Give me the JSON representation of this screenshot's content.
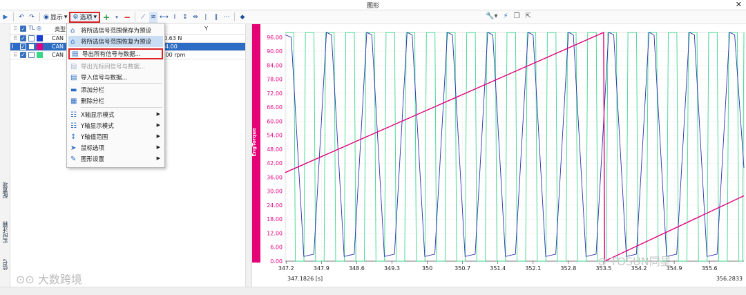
{
  "window": {
    "title": "图形",
    "close": "✕"
  },
  "toolbar": {
    "display_label": "显示",
    "options_label": "选项"
  },
  "signal_table": {
    "columns": [
      "类型",
      "Y"
    ],
    "rows": [
      {
        "type": "CAN",
        "value": "0.63 N",
        "color": "#1b3fd6",
        "selected": false
      },
      {
        "type": "CAN",
        "value": "4.00",
        "color": "#e4007f",
        "selected": true
      },
      {
        "type": "CAN",
        "value": ".00 rpm",
        "color": "#3ad68a",
        "selected": false
      }
    ]
  },
  "menu": {
    "items": [
      {
        "label": "将所选信号范围保存为预设",
        "icon": "home-icon",
        "state": "normal"
      },
      {
        "label": "将所选信号范围恢复为预设",
        "icon": "home-restore-icon",
        "state": "hover"
      },
      {
        "label": "导出所有信号与数据...",
        "icon": "export-icon",
        "state": "boxed"
      },
      {
        "label": "导出光标间信号与数据...",
        "icon": "export-cursor-icon",
        "state": "disabled"
      },
      {
        "label": "导入信号与数据...",
        "icon": "import-icon",
        "state": "normal"
      },
      {
        "label": "添加分栏",
        "icon": "add-panel-icon",
        "state": "normal"
      },
      {
        "label": "删除分栏",
        "icon": "delete-panel-icon",
        "state": "normal"
      },
      {
        "label": "X轴显示模式",
        "icon": "x-axis-icon",
        "state": "submenu"
      },
      {
        "label": "Y轴显示模式",
        "icon": "y-axis-icon",
        "state": "submenu"
      },
      {
        "label": "Y轴值范围",
        "icon": "y-range-icon",
        "state": "submenu"
      },
      {
        "label": "鼠标选项",
        "icon": "cursor-icon",
        "state": "submenu"
      },
      {
        "label": "图形设置",
        "icon": "pencil-icon",
        "state": "submenu"
      }
    ]
  },
  "side_tabs": [
    "配置项",
    "实时注释",
    "信号"
  ],
  "watermarks": {
    "left": "大数跨境",
    "right": "TOSUN同星"
  },
  "chart_data": {
    "type": "line",
    "ylabel": "EngTorque",
    "x_left_label": "347.1826 [s]",
    "x_right_label": "356.2833",
    "xlim": [
      347.1826,
      356.2833
    ],
    "ylim": [
      0,
      98
    ],
    "x_ticks": [
      "347.2",
      "347.9",
      "348.6",
      "349.3",
      "350",
      "350.7",
      "351.4",
      "352.1",
      "352.8",
      "353.5",
      "354.2",
      "354.9",
      "355.6"
    ],
    "y_ticks": [
      "96.00",
      "90.00",
      "84.00",
      "78.00",
      "72.00",
      "66.00",
      "60.00",
      "54.00",
      "48.00",
      "42.00",
      "36.00",
      "30.00",
      "24.00",
      "18.00",
      "12.00",
      "6.00",
      "0.00"
    ],
    "series": [
      {
        "color": "#e4007f",
        "values_desc": "ramp",
        "points": [
          [
            347.1826,
            38
          ],
          [
            353.5,
            98
          ],
          [
            353.52,
            0
          ],
          [
            356.2833,
            28
          ]
        ]
      },
      {
        "color": "#2b2fb3",
        "values_desc": "triangle",
        "points": [
          [
            347.1826,
            97
          ],
          [
            347.3,
            96
          ],
          [
            347.55,
            2
          ],
          [
            347.75,
            3
          ],
          [
            348.0,
            98
          ],
          [
            348.1,
            97
          ],
          [
            348.35,
            2
          ],
          [
            348.55,
            3
          ],
          [
            348.8,
            98
          ],
          [
            348.9,
            97
          ],
          [
            349.15,
            2
          ],
          [
            349.35,
            3
          ],
          [
            349.6,
            98
          ],
          [
            349.7,
            97
          ],
          [
            349.95,
            2
          ],
          [
            350.15,
            3
          ],
          [
            350.4,
            98
          ],
          [
            350.5,
            97
          ],
          [
            350.75,
            2
          ],
          [
            350.95,
            3
          ],
          [
            351.2,
            98
          ],
          [
            351.3,
            97
          ],
          [
            351.55,
            2
          ],
          [
            351.75,
            3
          ],
          [
            352.0,
            98
          ],
          [
            352.1,
            97
          ],
          [
            352.35,
            2
          ],
          [
            352.55,
            3
          ],
          [
            352.8,
            98
          ],
          [
            352.9,
            97
          ],
          [
            353.15,
            2
          ],
          [
            353.35,
            3
          ],
          [
            353.6,
            98
          ],
          [
            353.7,
            97
          ],
          [
            353.95,
            2
          ],
          [
            354.15,
            3
          ],
          [
            354.4,
            98
          ],
          [
            354.5,
            97
          ],
          [
            354.75,
            2
          ],
          [
            354.95,
            3
          ],
          [
            355.2,
            98
          ],
          [
            355.3,
            97
          ],
          [
            355.55,
            2
          ],
          [
            355.75,
            3
          ],
          [
            356.0,
            98
          ],
          [
            356.1,
            97
          ],
          [
            356.2833,
            40
          ]
        ]
      },
      {
        "color": "#3ad68a",
        "values_desc": "square",
        "period": 0.4,
        "high": 98,
        "low": 0
      }
    ]
  }
}
